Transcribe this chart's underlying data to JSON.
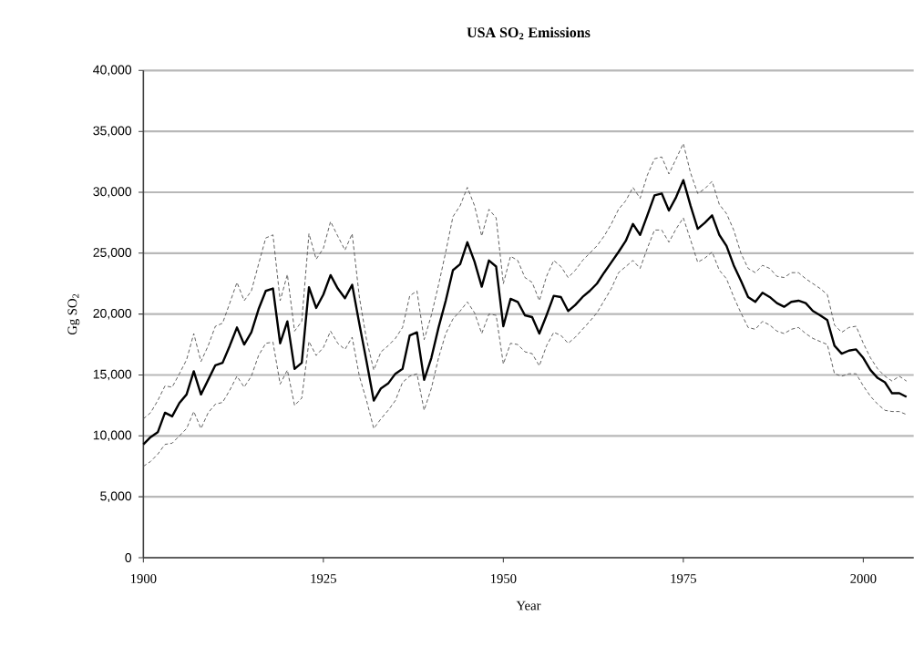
{
  "chart_data": {
    "type": "line",
    "title": "USA SO$_{2}$ Emissions",
    "xlabel": "Year",
    "ylabel": "Gg SO$_{2}$",
    "x": [
      1900,
      1901,
      1902,
      1903,
      1904,
      1905,
      1906,
      1907,
      1908,
      1909,
      1910,
      1911,
      1912,
      1913,
      1914,
      1915,
      1916,
      1917,
      1918,
      1919,
      1920,
      1921,
      1922,
      1923,
      1924,
      1925,
      1926,
      1927,
      1928,
      1929,
      1930,
      1931,
      1932,
      1933,
      1934,
      1935,
      1936,
      1937,
      1938,
      1939,
      1940,
      1941,
      1942,
      1943,
      1944,
      1945,
      1946,
      1947,
      1948,
      1949,
      1950,
      1951,
      1952,
      1953,
      1954,
      1955,
      1956,
      1957,
      1958,
      1959,
      1960,
      1961,
      1962,
      1963,
      1964,
      1965,
      1966,
      1967,
      1968,
      1969,
      1970,
      1971,
      1972,
      1973,
      1974,
      1975,
      1976,
      1977,
      1978,
      1979,
      1980,
      1981,
      1982,
      1983,
      1984,
      1985,
      1986,
      1987,
      1988,
      1989,
      1990,
      1991,
      1992,
      1993,
      1994,
      1995,
      1996,
      1997,
      1998,
      1999,
      2000,
      2001,
      2002,
      2003,
      2004,
      2005,
      2006
    ],
    "series": [
      {
        "color": "#000000",
        "line_style": "solid",
        "values": [
          9300,
          9900,
          10300,
          11900,
          11600,
          12700,
          13400,
          15300,
          13400,
          14600,
          15800,
          16000,
          17400,
          18900,
          17500,
          18500,
          20400,
          21900,
          22100,
          17600,
          19400,
          15500,
          16000,
          22200,
          20500,
          21600,
          23200,
          22100,
          21300,
          22400,
          19200,
          16100,
          12900,
          13900,
          14300,
          15100,
          15500,
          18250,
          18500,
          14600,
          16400,
          18900,
          21100,
          23600,
          24100,
          25900,
          24300,
          22250,
          24400,
          23900,
          19000,
          21250,
          21000,
          19900,
          19750,
          18400,
          19900,
          21500,
          21400,
          20250,
          20750,
          21400,
          21900,
          22500,
          23400,
          24250,
          25100,
          26000,
          27400,
          26500,
          28100,
          29750,
          29900,
          28500,
          29600,
          31000,
          28900,
          27000,
          27500,
          28100,
          26500,
          25600,
          24000,
          22750,
          21400,
          21000,
          21750,
          21400,
          20900,
          20600,
          21000,
          21100,
          20900,
          20250,
          19900,
          19500,
          17400,
          16750,
          17000,
          17100,
          16400,
          15400,
          14750,
          14400,
          13500,
          13500,
          13200
        ]
      },
      {
        "color": "#555555",
        "line_style": "dashed",
        "values": [
          11400,
          11900,
          12900,
          14100,
          14000,
          15100,
          16250,
          18400,
          16100,
          17400,
          19000,
          19250,
          20900,
          22600,
          21100,
          21900,
          24100,
          26250,
          26500,
          21100,
          23250,
          18600,
          19400,
          26600,
          24500,
          25400,
          27600,
          26400,
          25250,
          26600,
          21400,
          17900,
          15400,
          16900,
          17400,
          18000,
          18900,
          21500,
          21900,
          17900,
          19900,
          22400,
          25100,
          28000,
          28900,
          30400,
          28900,
          26400,
          28600,
          27900,
          22500,
          24750,
          24400,
          23000,
          22600,
          21100,
          23100,
          24400,
          23900,
          23000,
          23600,
          24400,
          25000,
          25600,
          26400,
          27400,
          28600,
          29300,
          30400,
          29500,
          31400,
          32750,
          32900,
          31500,
          32750,
          34000,
          31600,
          29900,
          30300,
          30900,
          29000,
          28250,
          26900,
          25000,
          23750,
          23400,
          24000,
          23750,
          23100,
          23000,
          23400,
          23400,
          22900,
          22500,
          22100,
          21600,
          19100,
          18500,
          18900,
          19000,
          17600,
          16400,
          15500,
          14900,
          14500,
          14900,
          14500
        ]
      },
      {
        "color": "#555555",
        "line_style": "dashed",
        "values": [
          7500,
          7900,
          8500,
          9300,
          9400,
          10000,
          10600,
          12000,
          10600,
          11900,
          12600,
          12750,
          13750,
          14900,
          14000,
          14900,
          16600,
          17600,
          17700,
          14250,
          15400,
          12500,
          13100,
          17750,
          16600,
          17250,
          18600,
          17600,
          17100,
          18100,
          14900,
          12900,
          10600,
          11400,
          12100,
          12900,
          14400,
          14900,
          15100,
          12100,
          13900,
          16400,
          18400,
          19600,
          20250,
          21000,
          20100,
          18400,
          20000,
          19900,
          15900,
          17600,
          17500,
          16900,
          16750,
          15750,
          17400,
          18500,
          18250,
          17600,
          18100,
          18750,
          19400,
          20100,
          21100,
          22100,
          23400,
          23900,
          24400,
          23750,
          25400,
          26900,
          26900,
          25900,
          27000,
          27900,
          26100,
          24250,
          24600,
          25100,
          23600,
          22900,
          21400,
          20100,
          18900,
          18750,
          19400,
          19100,
          18600,
          18400,
          18750,
          18900,
          18400,
          18000,
          17750,
          17500,
          15100,
          14900,
          15100,
          15100,
          14100,
          13250,
          12600,
          12100,
          12000,
          12000,
          11750
        ]
      }
    ],
    "xlim": [
      1900,
      2007
    ],
    "xticks": [
      1900,
      1925,
      1950,
      1975,
      2000
    ],
    "ylim": [
      0,
      40000
    ],
    "yticks": [
      0,
      {
        "value": 5000,
        "label": "5,000"
      },
      {
        "value": 10000,
        "label": "10,000"
      },
      {
        "value": 15000,
        "label": "15,000"
      },
      {
        "value": 20000,
        "label": "20,000"
      },
      {
        "value": 25000,
        "label": "25,000"
      },
      {
        "value": 30000,
        "label": "30,000"
      },
      {
        "value": 35000,
        "label": "35,000"
      },
      {
        "value": 40000,
        "label": "40,000"
      }
    ],
    "grid": "y",
    "marker": "none"
  }
}
